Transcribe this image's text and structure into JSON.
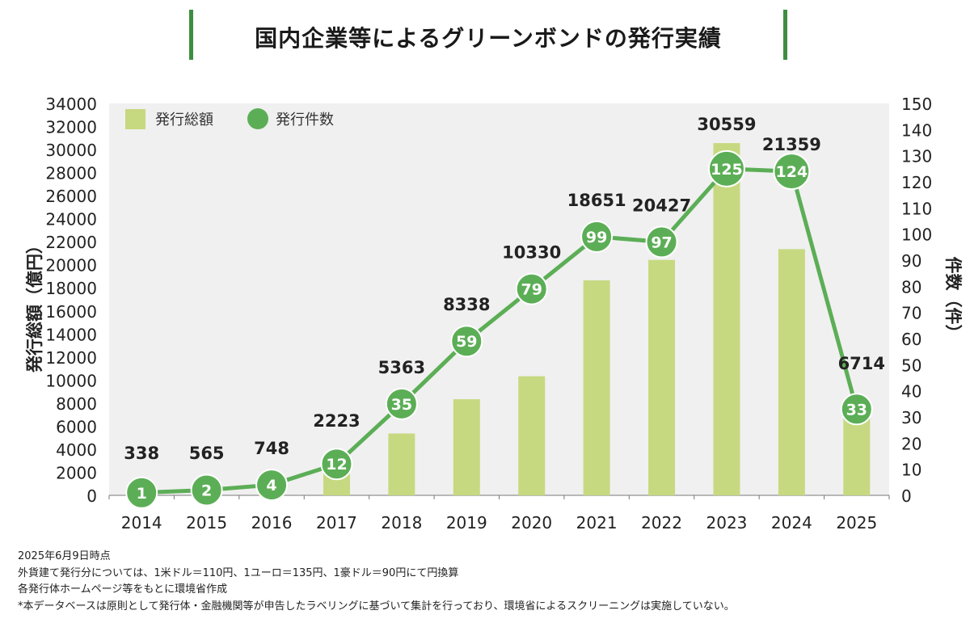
{
  "header": {
    "title": "国内企業等によるグリーンボンドの発行実績"
  },
  "colors": {
    "bar": "#c6d980",
    "line": "#5cae56",
    "accent": "#3e8e41",
    "plot_bg": "#f0f0f0"
  },
  "chart_data": {
    "type": "bar",
    "categories": [
      "2014",
      "2015",
      "2016",
      "2017",
      "2018",
      "2019",
      "2020",
      "2021",
      "2022",
      "2023",
      "2024",
      "2025"
    ],
    "series": [
      {
        "name": "発行総額",
        "type": "bar",
        "axis": "left",
        "values": [
          338,
          565,
          748,
          2223,
          5363,
          8338,
          10330,
          18651,
          20427,
          30559,
          21359,
          6714
        ],
        "labels": [
          "338",
          "565",
          "748",
          "2223",
          "5363",
          "8338",
          "10330",
          "18651",
          "20427",
          "30559",
          "21359",
          "6714"
        ]
      },
      {
        "name": "発行件数",
        "type": "line",
        "axis": "right",
        "values": [
          1,
          2,
          4,
          12,
          35,
          59,
          79,
          99,
          97,
          125,
          124,
          33
        ],
        "labels": [
          "1",
          "2",
          "4",
          "12",
          "35",
          "59",
          "79",
          "99",
          "97",
          "125",
          "124",
          "33"
        ]
      }
    ],
    "ylabel_left": "発行総額（億円）",
    "ylabel_right": "件数（件）",
    "ylim_left": [
      0,
      34000
    ],
    "ylim_right": [
      0,
      150
    ],
    "yticks_left": [
      "34000",
      "32000",
      "30000",
      "28000",
      "26000",
      "24000",
      "22000",
      "20000",
      "18000",
      "16000",
      "14000",
      "12000",
      "10000",
      "8000",
      "6000",
      "4000",
      "2000",
      "0"
    ],
    "yticks_right": [
      "150",
      "140",
      "130",
      "120",
      "110",
      "100",
      "90",
      "80",
      "70",
      "60",
      "50",
      "40",
      "30",
      "20",
      "10",
      "0"
    ],
    "legend": {
      "placement": "top-left",
      "bar_label": "発行総額",
      "line_label": "発行件数"
    },
    "grid": false
  },
  "notes": [
    "2025年6月9日時点",
    "外貨建て発行分については、1米ドル＝110円、1ユーロ＝135円、1豪ドル＝90円にて円換算",
    "各発行体ホームページ等をもとに環境省作成",
    "*本データベースは原則として発行体・金融機関等が申告したラベリングに基づいて集計を行っており、環境省によるスクリーニングは実施していない。"
  ]
}
